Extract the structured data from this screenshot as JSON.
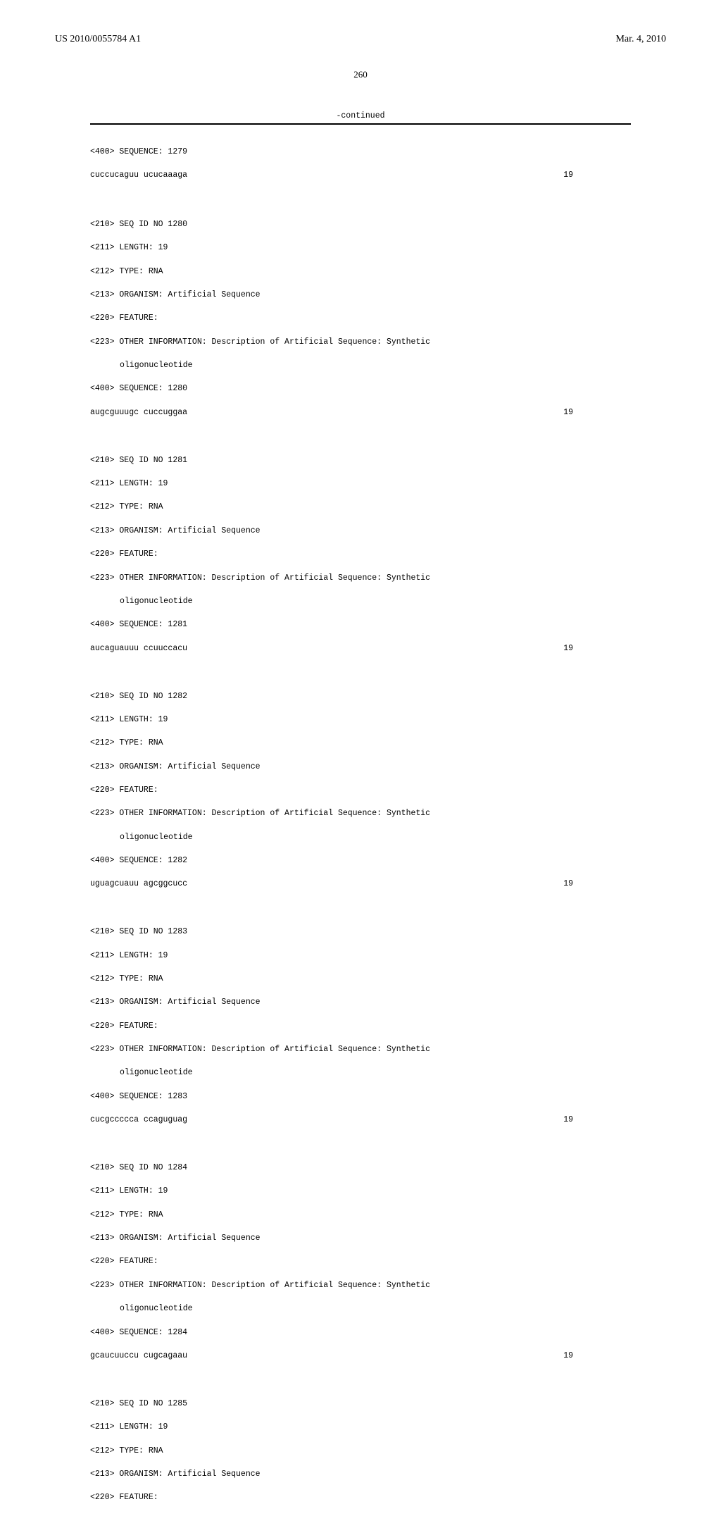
{
  "header": {
    "publication_number": "US 2010/0055784 A1",
    "publication_date": "Mar. 4, 2010"
  },
  "page_number": "260",
  "continued_label": "-continued",
  "entries": [
    {
      "seq400": "<400> SEQUENCE: 1279",
      "sequence": "cuccucaguu ucucaaaga",
      "length_value": "19"
    },
    {
      "lines": [
        "<210> SEQ ID NO 1280",
        "<211> LENGTH: 19",
        "<212> TYPE: RNA",
        "<213> ORGANISM: Artificial Sequence",
        "<220> FEATURE:",
        "<223> OTHER INFORMATION: Description of Artificial Sequence: Synthetic"
      ],
      "indent_line": "oligonucleotide",
      "seq400": "<400> SEQUENCE: 1280",
      "sequence": "augcguuugc cuccuggaa",
      "length_value": "19"
    },
    {
      "lines": [
        "<210> SEQ ID NO 1281",
        "<211> LENGTH: 19",
        "<212> TYPE: RNA",
        "<213> ORGANISM: Artificial Sequence",
        "<220> FEATURE:",
        "<223> OTHER INFORMATION: Description of Artificial Sequence: Synthetic"
      ],
      "indent_line": "oligonucleotide",
      "seq400": "<400> SEQUENCE: 1281",
      "sequence": "aucaguauuu ccuuccacu",
      "length_value": "19"
    },
    {
      "lines": [
        "<210> SEQ ID NO 1282",
        "<211> LENGTH: 19",
        "<212> TYPE: RNA",
        "<213> ORGANISM: Artificial Sequence",
        "<220> FEATURE:",
        "<223> OTHER INFORMATION: Description of Artificial Sequence: Synthetic"
      ],
      "indent_line": "oligonucleotide",
      "seq400": "<400> SEQUENCE: 1282",
      "sequence": "uguagcuauu agcggcucc",
      "length_value": "19"
    },
    {
      "lines": [
        "<210> SEQ ID NO 1283",
        "<211> LENGTH: 19",
        "<212> TYPE: RNA",
        "<213> ORGANISM: Artificial Sequence",
        "<220> FEATURE:",
        "<223> OTHER INFORMATION: Description of Artificial Sequence: Synthetic"
      ],
      "indent_line": "oligonucleotide",
      "seq400": "<400> SEQUENCE: 1283",
      "sequence": "cucgccccca ccaguguag",
      "length_value": "19"
    },
    {
      "lines": [
        "<210> SEQ ID NO 1284",
        "<211> LENGTH: 19",
        "<212> TYPE: RNA",
        "<213> ORGANISM: Artificial Sequence",
        "<220> FEATURE:",
        "<223> OTHER INFORMATION: Description of Artificial Sequence: Synthetic"
      ],
      "indent_line": "oligonucleotide",
      "seq400": "<400> SEQUENCE: 1284",
      "sequence": "gcaucuuccu cugcagaau",
      "length_value": "19"
    },
    {
      "lines": [
        "<210> SEQ ID NO 1285",
        "<211> LENGTH: 19",
        "<212> TYPE: RNA",
        "<213> ORGANISM: Artificial Sequence",
        "<220> FEATURE:"
      ]
    }
  ]
}
